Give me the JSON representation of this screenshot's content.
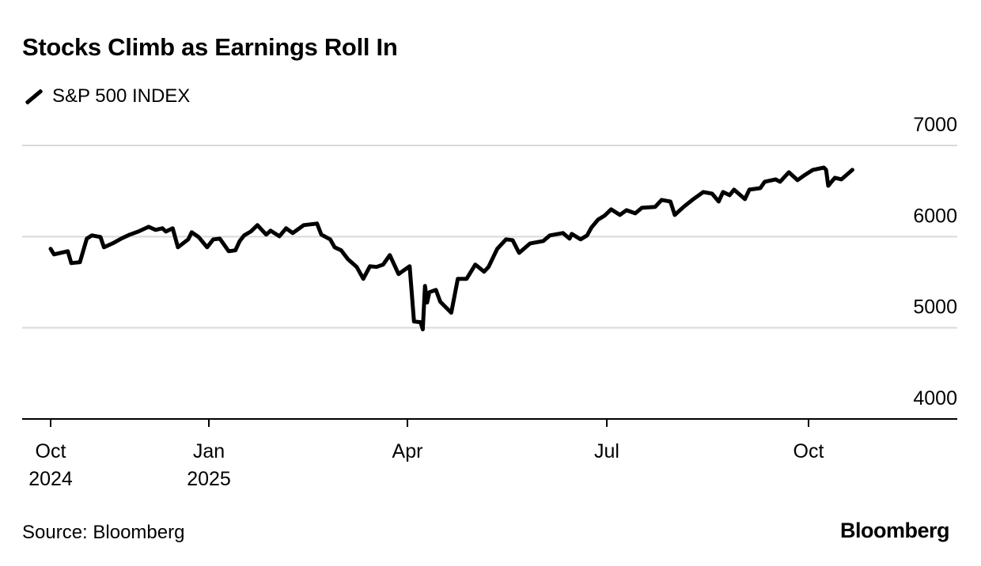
{
  "chart_data": {
    "type": "line",
    "title": "Stocks Climb as Earnings Roll In",
    "legend": [
      {
        "name": "S&P 500 INDEX",
        "color": "#000000"
      }
    ],
    "legend_placement": "top-left",
    "source": "Source: Bloomberg",
    "logo": "Bloomberg",
    "xlabel": "",
    "ylabel": "",
    "x_unit": "days since Oct 1 2024",
    "ylim": [
      4000,
      7000
    ],
    "y_ticks": [
      {
        "value": 7000,
        "label": "7000"
      },
      {
        "value": 6000,
        "label": "6000"
      },
      {
        "value": 5000,
        "label": "5000"
      },
      {
        "value": 4000,
        "label": "4000"
      }
    ],
    "x_ticks": [
      {
        "day": 0,
        "line1": "Oct",
        "line2": "2024"
      },
      {
        "day": 92,
        "line1": "Jan",
        "line2": "2025"
      },
      {
        "day": 182,
        "line1": "Apr",
        "line2": ""
      },
      {
        "day": 273,
        "line1": "Jul",
        "line2": ""
      },
      {
        "day": 365,
        "line1": "Oct",
        "line2": ""
      }
    ],
    "grid": true,
    "series": [
      {
        "name": "S&P 500 INDEX",
        "x": [
          0,
          2,
          10,
          12,
          17,
          21,
          24,
          29,
          31,
          36,
          41,
          46,
          51,
          57,
          61,
          65,
          67,
          71,
          74,
          80,
          82,
          86,
          91,
          94,
          97,
          101,
          104,
          106,
          108,
          111,
          114,
          118,
          120,
          124,
          127,
          130,
          135,
          141,
          143,
          147,
          149,
          152,
          155,
          159,
          162,
          165,
          168,
          171,
          174,
          178,
          183,
          185,
          188,
          189,
          190,
          191,
          192,
          195,
          197,
          202,
          205,
          209,
          213,
          217,
          219,
          223,
          227,
          230,
          233,
          238,
          244,
          247,
          253,
          256,
          257,
          261,
          264,
          266,
          269,
          272,
          275,
          279,
          282,
          286,
          289,
          295,
          298,
          302,
          304,
          308,
          312,
          317,
          321,
          324,
          326,
          329,
          331,
          336,
          338,
          343,
          345,
          350,
          352,
          356,
          360,
          363,
          367,
          372,
          373,
          374,
          377,
          380,
          385
        ],
        "values": [
          5866,
          5805,
          5840,
          5710,
          5719,
          5978,
          6013,
          5996,
          5883,
          5926,
          5978,
          6022,
          6056,
          6108,
          6074,
          6091,
          6056,
          6091,
          5883,
          5970,
          6048,
          5996,
          5883,
          5970,
          5978,
          5840,
          5849,
          5952,
          6013,
          6056,
          6126,
          6022,
          6065,
          6004,
          6091,
          6039,
          6126,
          6143,
          6022,
          5970,
          5883,
          5849,
          5753,
          5667,
          5537,
          5675,
          5667,
          5693,
          5797,
          5589,
          5675,
          5069,
          5061,
          4983,
          5459,
          5277,
          5390,
          5416,
          5286,
          5165,
          5537,
          5537,
          5693,
          5615,
          5667,
          5866,
          5970,
          5961,
          5822,
          5926,
          5952,
          6013,
          6039,
          5978,
          6030,
          5970,
          6013,
          6100,
          6186,
          6230,
          6299,
          6238,
          6290,
          6255,
          6316,
          6325,
          6403,
          6385,
          6238,
          6325,
          6403,
          6489,
          6472,
          6385,
          6489,
          6455,
          6515,
          6411,
          6515,
          6532,
          6602,
          6628,
          6602,
          6706,
          6619,
          6671,
          6732,
          6757,
          6732,
          6558,
          6645,
          6628,
          6732
        ]
      }
    ]
  }
}
